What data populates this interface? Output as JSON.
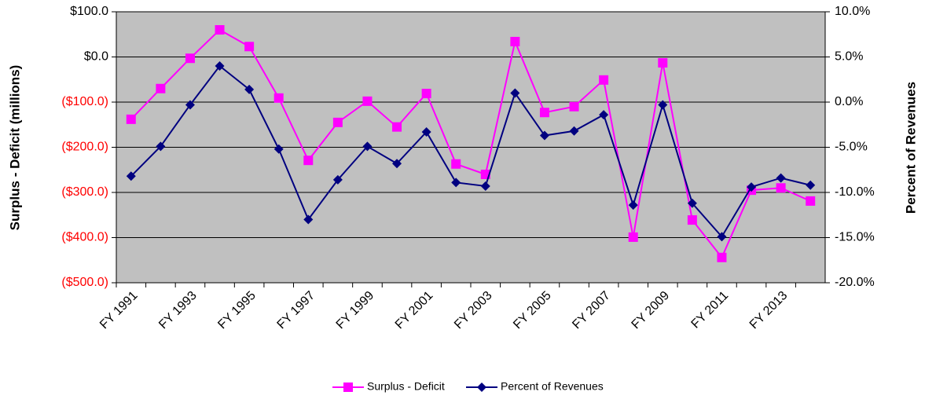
{
  "chart_data": {
    "type": "line",
    "categories": [
      "FY 1991",
      null,
      "FY 1993",
      null,
      "FY 1995",
      null,
      "FY 1997",
      null,
      "FY 1999",
      null,
      "FY 2001",
      null,
      "FY 2003",
      null,
      "FY 2005",
      null,
      "FY 2007",
      null,
      "FY 2009",
      null,
      "FY 2011",
      null,
      "FY 2013",
      null
    ],
    "series": [
      {
        "name": "Surplus - Deficit",
        "color": "#ff00ff",
        "marker": "square",
        "values": [
          -138,
          -70,
          -3,
          60,
          23,
          -91,
          -229,
          -145,
          -98,
          -155,
          -81,
          -237,
          -260,
          34,
          -123,
          -110,
          -51,
          -399,
          -13,
          -361,
          -444,
          -295,
          -290,
          -319
        ]
      },
      {
        "name": "Percent of Revenues",
        "color": "#000080",
        "marker": "diamond",
        "axis": "y2",
        "values": [
          -8.2,
          -4.9,
          -0.3,
          4.0,
          1.4,
          -5.2,
          -13.0,
          -8.6,
          -4.9,
          -6.8,
          -3.3,
          -8.9,
          -9.3,
          1.0,
          -3.7,
          -3.2,
          -1.4,
          -11.4,
          -0.3,
          -11.2,
          -14.9,
          -9.4,
          -8.4,
          -9.2
        ]
      }
    ],
    "y_label": "Surplus - Deficit (millions)",
    "y2_label": "Percent of Revenues",
    "ylim": [
      -500,
      100
    ],
    "yticks": [
      {
        "value": -500,
        "label": "($500.0)"
      },
      {
        "value": -400,
        "label": "($400.0)"
      },
      {
        "value": -300,
        "label": "($300.0)"
      },
      {
        "value": -200,
        "label": "($200.0)"
      },
      {
        "value": -100,
        "label": "($100.0)"
      },
      {
        "value": 0,
        "label": "$0.0"
      },
      {
        "value": 100,
        "label": "$100.0"
      }
    ],
    "y2lim": [
      -20,
      10
    ],
    "y2ticks": [
      {
        "value": -20,
        "label": "-20.0%"
      },
      {
        "value": -15,
        "label": "-15.0%"
      },
      {
        "value": -10,
        "label": "-10.0%"
      },
      {
        "value": -5,
        "label": "-5.0%"
      },
      {
        "value": 0,
        "label": "0.0%"
      },
      {
        "value": 5,
        "label": "5.0%"
      },
      {
        "value": 10,
        "label": "10.0%"
      }
    ],
    "grid": true,
    "plot_background": "#c0c0c0",
    "negative_label_color": "#ff0000",
    "legend": "bottom"
  }
}
